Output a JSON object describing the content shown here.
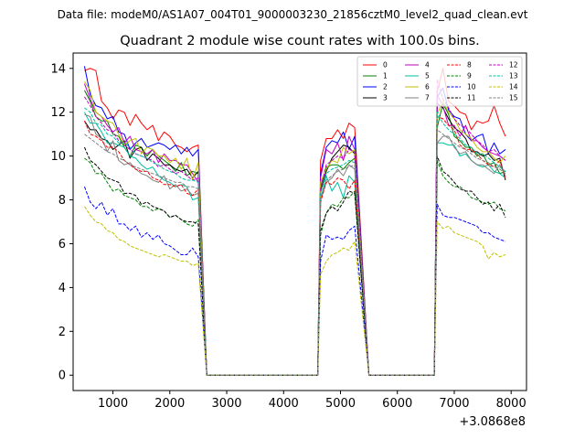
{
  "suptitle": "Data file: modeM0/AS1A07_004T01_9000003230_21856cztM0_level2_quad_clean.evt",
  "title": "Quadrant 2 module wise count rates with 100.0s bins.",
  "x_offset_label": "+3.0868e8",
  "chart_data": {
    "type": "line",
    "title": "Quadrant 2 module wise count rates with 100.0s bins.",
    "xlabel": "",
    "ylabel": "",
    "x_offset": 308680000,
    "xlim": [
      300,
      8270
    ],
    "ylim": [
      -0.7,
      14.7
    ],
    "xticks": [
      1000,
      2000,
      3000,
      4000,
      5000,
      6000,
      7000,
      8000
    ],
    "yticks": [
      0,
      2,
      4,
      6,
      8,
      10,
      12,
      14
    ],
    "legend_location": "top-right",
    "legend_columns": 4,
    "segments": [
      {
        "start": 500,
        "end": 2600,
        "dt": 100
      },
      {
        "start": 4650,
        "end": 5450,
        "dt": 100
      },
      {
        "start": 6700,
        "end": 7900,
        "dt": 100
      }
    ],
    "gaps_drop_to": 0,
    "series": [
      {
        "name": "0",
        "color": "#ff0000",
        "dash": "solid",
        "seg1": [
          13.9,
          14.0,
          13.9,
          12.5,
          12.2,
          11.7,
          12.1,
          12.0,
          11.4,
          11.9,
          11.5,
          11.2,
          11.4,
          10.7,
          11.1,
          10.9,
          10.5,
          10.4,
          10.2,
          10.4,
          10.5
        ],
        "seg2": [
          9.8,
          10.8,
          10.8,
          11.2,
          10.8,
          11.5,
          11.3
        ],
        "seg3": [
          12.9,
          14.0,
          12.5,
          12.3,
          12.0,
          11.9,
          11.2,
          11.6,
          11.5,
          11.6,
          12.3,
          11.5,
          10.9
        ]
      },
      {
        "name": "1",
        "color": "#008000",
        "dash": "solid",
        "seg1": [
          13.0,
          12.5,
          11.8,
          11.6,
          11.6,
          11.0,
          10.9,
          10.4,
          10.0,
          10.5,
          10.4,
          10.0,
          10.3,
          10.0,
          9.8,
          9.6,
          9.3,
          9.7,
          9.1,
          9.3,
          9.2
        ],
        "seg2": [
          8.6,
          9.5,
          9.6,
          9.6,
          9.4,
          9.7,
          9.9
        ],
        "seg3": [
          11.3,
          12.4,
          11.9,
          10.9,
          10.7,
          10.4,
          10.4,
          10.0,
          10.1,
          9.6,
          9.7,
          9.2,
          9.3
        ]
      },
      {
        "name": "2",
        "color": "#0000ff",
        "dash": "solid",
        "seg1": [
          14.1,
          12.8,
          12.3,
          12.2,
          11.7,
          11.8,
          11.1,
          11.0,
          10.3,
          10.6,
          10.8,
          10.4,
          10.5,
          10.6,
          10.5,
          10.3,
          10.5,
          10.1,
          10.4,
          10.0,
          10.3
        ],
        "seg2": [
          9.2,
          10.4,
          10.7,
          10.6,
          11.1,
          10.3,
          10.9
        ],
        "seg3": [
          12.7,
          13.1,
          12.1,
          11.8,
          11.7,
          11.0,
          10.7,
          10.9,
          11.0,
          10.1,
          10.6,
          10.1,
          10.3
        ]
      },
      {
        "name": "3",
        "color": "#000000",
        "dash": "solid",
        "seg1": [
          11.6,
          11.2,
          11.2,
          10.8,
          10.7,
          10.3,
          10.5,
          10.7,
          9.9,
          10.3,
          10.4,
          9.8,
          10.1,
          9.9,
          9.6,
          9.6,
          9.4,
          9.3,
          9.4,
          9.0,
          9.3
        ],
        "seg2": [
          8.4,
          9.3,
          9.9,
          10.2,
          10.5,
          10.4,
          10.1
        ],
        "seg3": [
          12.4,
          12.2,
          11.7,
          11.3,
          11.1,
          10.8,
          10.2,
          10.2,
          10.0,
          10.1,
          9.8,
          9.9,
          8.9
        ]
      },
      {
        "name": "4",
        "color": "#c000c0",
        "dash": "solid",
        "seg1": [
          13.3,
          12.6,
          12.0,
          11.8,
          11.4,
          11.1,
          11.3,
          10.6,
          10.9,
          10.3,
          10.2,
          10.1,
          10.3,
          9.7,
          10.1,
          9.8,
          9.8,
          9.6,
          9.6,
          9.2,
          8.8
        ],
        "seg2": [
          9.0,
          10.3,
          10.1,
          10.6,
          9.8,
          10.9,
          10.3
        ],
        "seg3": [
          12.8,
          12.3,
          11.4,
          11.4,
          10.9,
          11.4,
          10.7,
          10.7,
          10.4,
          10.2,
          10.1,
          10.0,
          9.8
        ]
      },
      {
        "name": "5",
        "color": "#00c0a0",
        "dash": "solid",
        "seg1": [
          12.0,
          11.5,
          11.5,
          11.1,
          10.6,
          10.6,
          10.5,
          10.4,
          10.0,
          9.9,
          9.6,
          9.4,
          9.5,
          9.1,
          8.9,
          8.8,
          8.6,
          8.7,
          8.6,
          8.0,
          8.1
        ],
        "seg2": [
          8.0,
          9.1,
          8.4,
          8.8,
          8.1,
          9.1,
          8.8
        ],
        "seg3": [
          10.6,
          10.6,
          10.5,
          10.5,
          10.0,
          10.1,
          9.8,
          9.6,
          9.5,
          9.6,
          9.3,
          9.2,
          9.0
        ]
      },
      {
        "name": "6",
        "color": "#c0c000",
        "dash": "solid",
        "seg1": [
          13.4,
          13.0,
          12.0,
          11.8,
          11.6,
          11.5,
          11.0,
          10.5,
          10.7,
          10.8,
          10.1,
          10.4,
          10.3,
          10.0,
          10.0,
          9.7,
          9.9,
          9.4,
          9.9,
          8.9,
          9.7
        ],
        "seg2": [
          8.8,
          9.4,
          9.8,
          9.7,
          10.4,
          10.1,
          10.3
        ],
        "seg3": [
          11.9,
          12.5,
          12.0,
          11.7,
          11.2,
          11.0,
          10.8,
          10.4,
          10.2,
          10.2,
          9.9,
          9.7,
          10.0
        ]
      },
      {
        "name": "7",
        "color": "#808080",
        "dash": "solid",
        "seg1": [
          11.9,
          11.8,
          11.0,
          10.8,
          10.2,
          10.7,
          9.8,
          9.6,
          9.7,
          9.4,
          9.2,
          9.1,
          8.9,
          8.8,
          9.1,
          8.5,
          8.7,
          8.4,
          8.5,
          8.2,
          8.3
        ],
        "seg2": [
          8.0,
          8.8,
          9.0,
          9.4,
          9.1,
          9.6,
          9.4
        ],
        "seg3": [
          10.6,
          10.9,
          10.9,
          10.4,
          10.1,
          10.2,
          9.8,
          9.6,
          9.6,
          9.4,
          9.2,
          9.6,
          9.1
        ]
      },
      {
        "name": "8",
        "color": "#ff0000",
        "dash": "dashed",
        "seg1": [
          11.6,
          11.0,
          10.9,
          10.7,
          10.4,
          10.4,
          10.2,
          9.8,
          9.6,
          9.4,
          9.3,
          9.3,
          9.0,
          8.9,
          8.7,
          8.7,
          8.6,
          8.7,
          8.3,
          8.2,
          8.5
        ],
        "seg2": [
          7.9,
          8.8,
          8.7,
          9.0,
          8.9,
          8.5,
          8.9
        ],
        "seg3": [
          11.8,
          11.7,
          11.4,
          11.2,
          10.5,
          10.3,
          10.3,
          10.1,
          9.8,
          9.6,
          9.5,
          9.8,
          9.0
        ]
      },
      {
        "name": "9",
        "color": "#008000",
        "dash": "dashed",
        "seg1": [
          9.9,
          9.7,
          9.2,
          9.2,
          8.8,
          8.4,
          8.5,
          8.2,
          8.1,
          8.0,
          7.7,
          7.7,
          7.5,
          7.6,
          7.5,
          7.2,
          7.3,
          7.1,
          6.9,
          6.8,
          7.1
        ],
        "seg2": [
          6.4,
          7.4,
          7.8,
          7.7,
          8.1,
          8.1,
          8.4
        ],
        "seg3": [
          9.8,
          9.1,
          8.8,
          8.6,
          8.6,
          8.4,
          8.1,
          8.0,
          7.9,
          7.8,
          7.9,
          7.6,
          7.5
        ]
      },
      {
        "name": "10",
        "color": "#0000ff",
        "dash": "dashed",
        "seg1": [
          8.6,
          7.9,
          7.6,
          7.9,
          7.3,
          7.6,
          6.9,
          6.9,
          6.6,
          6.8,
          6.3,
          6.5,
          6.2,
          6.4,
          6.0,
          5.9,
          5.7,
          5.5,
          5.5,
          5.8,
          5.4
        ],
        "seg2": [
          5.2,
          6.4,
          6.2,
          6.3,
          6.2,
          6.6,
          6.8
        ],
        "seg3": [
          7.8,
          7.3,
          7.2,
          7.2,
          7.1,
          7.0,
          6.9,
          6.8,
          6.5,
          6.5,
          6.3,
          6.2,
          6.1
        ]
      },
      {
        "name": "11",
        "color": "#000000",
        "dash": "dashed",
        "seg1": [
          10.4,
          9.8,
          9.6,
          9.3,
          9.0,
          8.9,
          8.8,
          8.3,
          8.3,
          8.2,
          7.8,
          7.9,
          7.7,
          7.6,
          7.5,
          7.2,
          7.3,
          7.1,
          7.0,
          7.0,
          6.9
        ],
        "seg2": [
          6.6,
          7.4,
          7.7,
          7.5,
          7.9,
          8.4,
          8.3
        ],
        "seg3": [
          10.0,
          9.3,
          9.1,
          8.8,
          8.5,
          8.4,
          8.4,
          8.1,
          7.8,
          7.9,
          7.5,
          7.8,
          7.2
        ]
      },
      {
        "name": "12",
        "color": "#c000c0",
        "dash": "dashed",
        "seg1": [
          12.7,
          12.3,
          11.8,
          11.5,
          11.2,
          11.1,
          10.7,
          10.5,
          10.3,
          10.1,
          10.0,
          9.9,
          9.8,
          9.5,
          9.6,
          9.4,
          9.2,
          9.3,
          9.1,
          8.9,
          9.0
        ],
        "seg2": [
          8.5,
          9.6,
          9.8,
          10.0,
          9.9,
          10.3,
          10.2
        ],
        "seg3": [
          13.5,
          12.6,
          12.2,
          11.7,
          11.4,
          11.3,
          11.0,
          10.7,
          10.5,
          10.2,
          10.3,
          10.0,
          9.8
        ]
      },
      {
        "name": "13",
        "color": "#00c0a0",
        "dash": "dashed",
        "seg1": [
          12.2,
          12.0,
          11.5,
          11.4,
          11.0,
          10.9,
          10.6,
          10.6,
          10.4,
          10.1,
          10.0,
          9.9,
          9.7,
          9.6,
          9.4,
          9.3,
          9.2,
          9.0,
          8.9,
          8.9,
          8.8
        ],
        "seg2": [
          8.3,
          9.2,
          9.4,
          9.5,
          9.6,
          9.8,
          9.7
        ],
        "seg3": [
          12.0,
          11.5,
          11.2,
          11.0,
          10.8,
          10.5,
          10.4,
          10.1,
          10.1,
          9.9,
          9.7,
          9.5,
          9.3
        ]
      },
      {
        "name": "14",
        "color": "#c0c000",
        "dash": "dashed",
        "seg1": [
          7.7,
          7.3,
          7.0,
          6.9,
          6.6,
          6.5,
          6.2,
          6.1,
          5.9,
          5.8,
          5.7,
          5.6,
          5.5,
          5.4,
          5.5,
          5.4,
          5.3,
          5.2,
          5.2,
          5.0,
          5.1
        ],
        "seg2": [
          4.6,
          5.2,
          5.5,
          5.6,
          5.8,
          5.7,
          6.1
        ],
        "seg3": [
          7.0,
          6.7,
          6.8,
          6.5,
          6.4,
          6.3,
          6.2,
          6.1,
          5.9,
          5.3,
          5.6,
          5.4,
          5.5
        ]
      },
      {
        "name": "15",
        "color": "#808080",
        "dash": "dashed",
        "seg1": [
          11.0,
          10.8,
          10.6,
          10.4,
          10.2,
          10.1,
          9.9,
          9.8,
          9.6,
          9.5,
          9.4,
          9.3,
          9.2,
          9.1,
          9.0,
          8.9,
          8.8,
          8.8,
          8.6,
          8.6,
          8.5
        ],
        "seg2": [
          8.0,
          8.9,
          9.1,
          9.3,
          9.4,
          9.5,
          9.6
        ],
        "seg3": [
          11.2,
          11.0,
          10.8,
          10.6,
          10.4,
          10.3,
          10.1,
          9.9,
          9.8,
          9.7,
          9.5,
          9.4,
          9.2
        ]
      }
    ]
  }
}
